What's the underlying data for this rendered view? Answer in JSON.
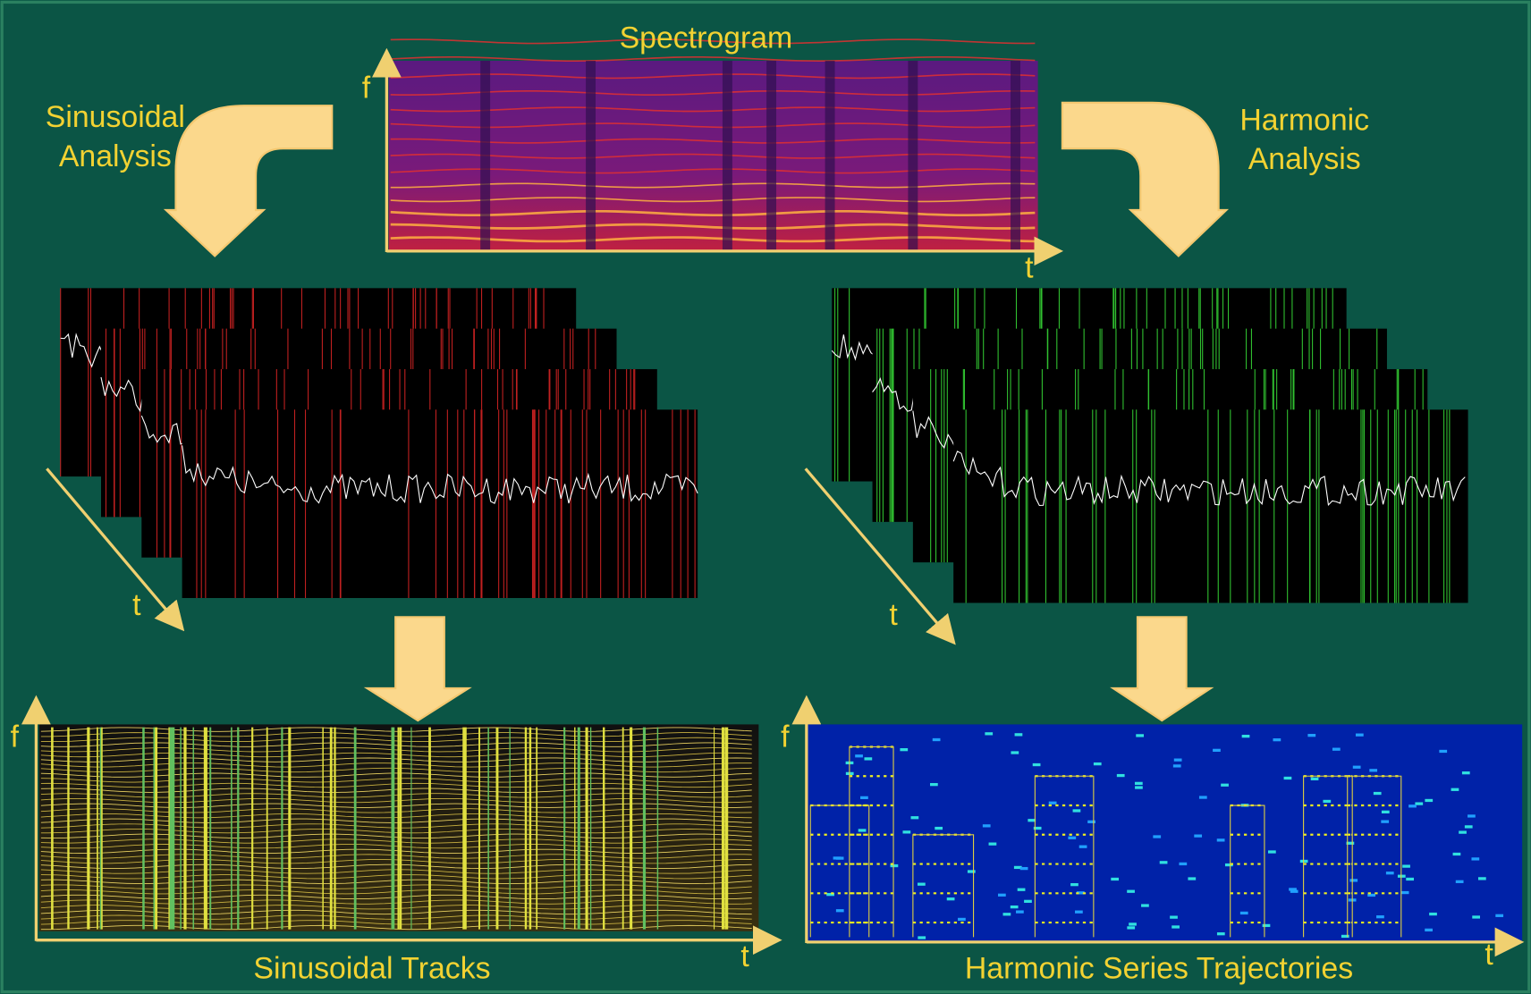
{
  "spectrogram": {
    "title": "Spectrogram",
    "f_label": "f",
    "t_label": "t"
  },
  "sinusoidal_analysis": {
    "label": [
      "Sinusoidal",
      "Analysis"
    ],
    "t_label": "t"
  },
  "harmonic_analysis": {
    "label": [
      "Harmonic",
      "Analysis"
    ],
    "t_label": "t"
  },
  "sinusoidal_tracks": {
    "title": "Sinusoidal Tracks",
    "f_label": "f",
    "t_label": "t"
  },
  "harmonic_trajectories": {
    "title": "Harmonic Series Trajectories",
    "f_label": "f",
    "t_label": "t"
  }
}
